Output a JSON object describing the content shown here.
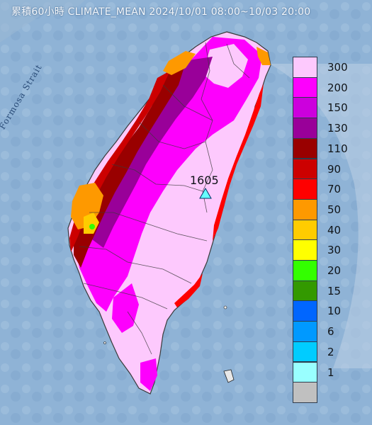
{
  "header": {
    "title": "累積60小時 CLIMATE_MEAN 2024/10/01 08:00~10/03 20:00"
  },
  "map": {
    "sea_label": "Formosa Strait",
    "max_station": {
      "label": "1605",
      "icon": "triangle-icon"
    },
    "colors": {
      "sea": "#8fb3d6",
      "land_neighbor": "#b9c8d8",
      "outline": "#3a3a3a"
    }
  },
  "legend": {
    "units_hint": "",
    "classes": [
      {
        "label": "300",
        "color": "#fdc9fd"
      },
      {
        "label": "200",
        "color": "#fd00fd"
      },
      {
        "label": "150",
        "color": "#cc00dd"
      },
      {
        "label": "130",
        "color": "#990099"
      },
      {
        "label": "110",
        "color": "#990000"
      },
      {
        "label": "90",
        "color": "#cc0000"
      },
      {
        "label": "70",
        "color": "#fe0000"
      },
      {
        "label": "50",
        "color": "#fe9900"
      },
      {
        "label": "40",
        "color": "#ffcc00"
      },
      {
        "label": "30",
        "color": "#ffff00"
      },
      {
        "label": "20",
        "color": "#33ff00"
      },
      {
        "label": "15",
        "color": "#339900"
      },
      {
        "label": "10",
        "color": "#0066ff"
      },
      {
        "label": "6",
        "color": "#0099ff"
      },
      {
        "label": "2",
        "color": "#00ccff"
      },
      {
        "label": "1",
        "color": "#99ffff"
      },
      {
        "label": "",
        "color": "#c0c0c0"
      }
    ]
  }
}
